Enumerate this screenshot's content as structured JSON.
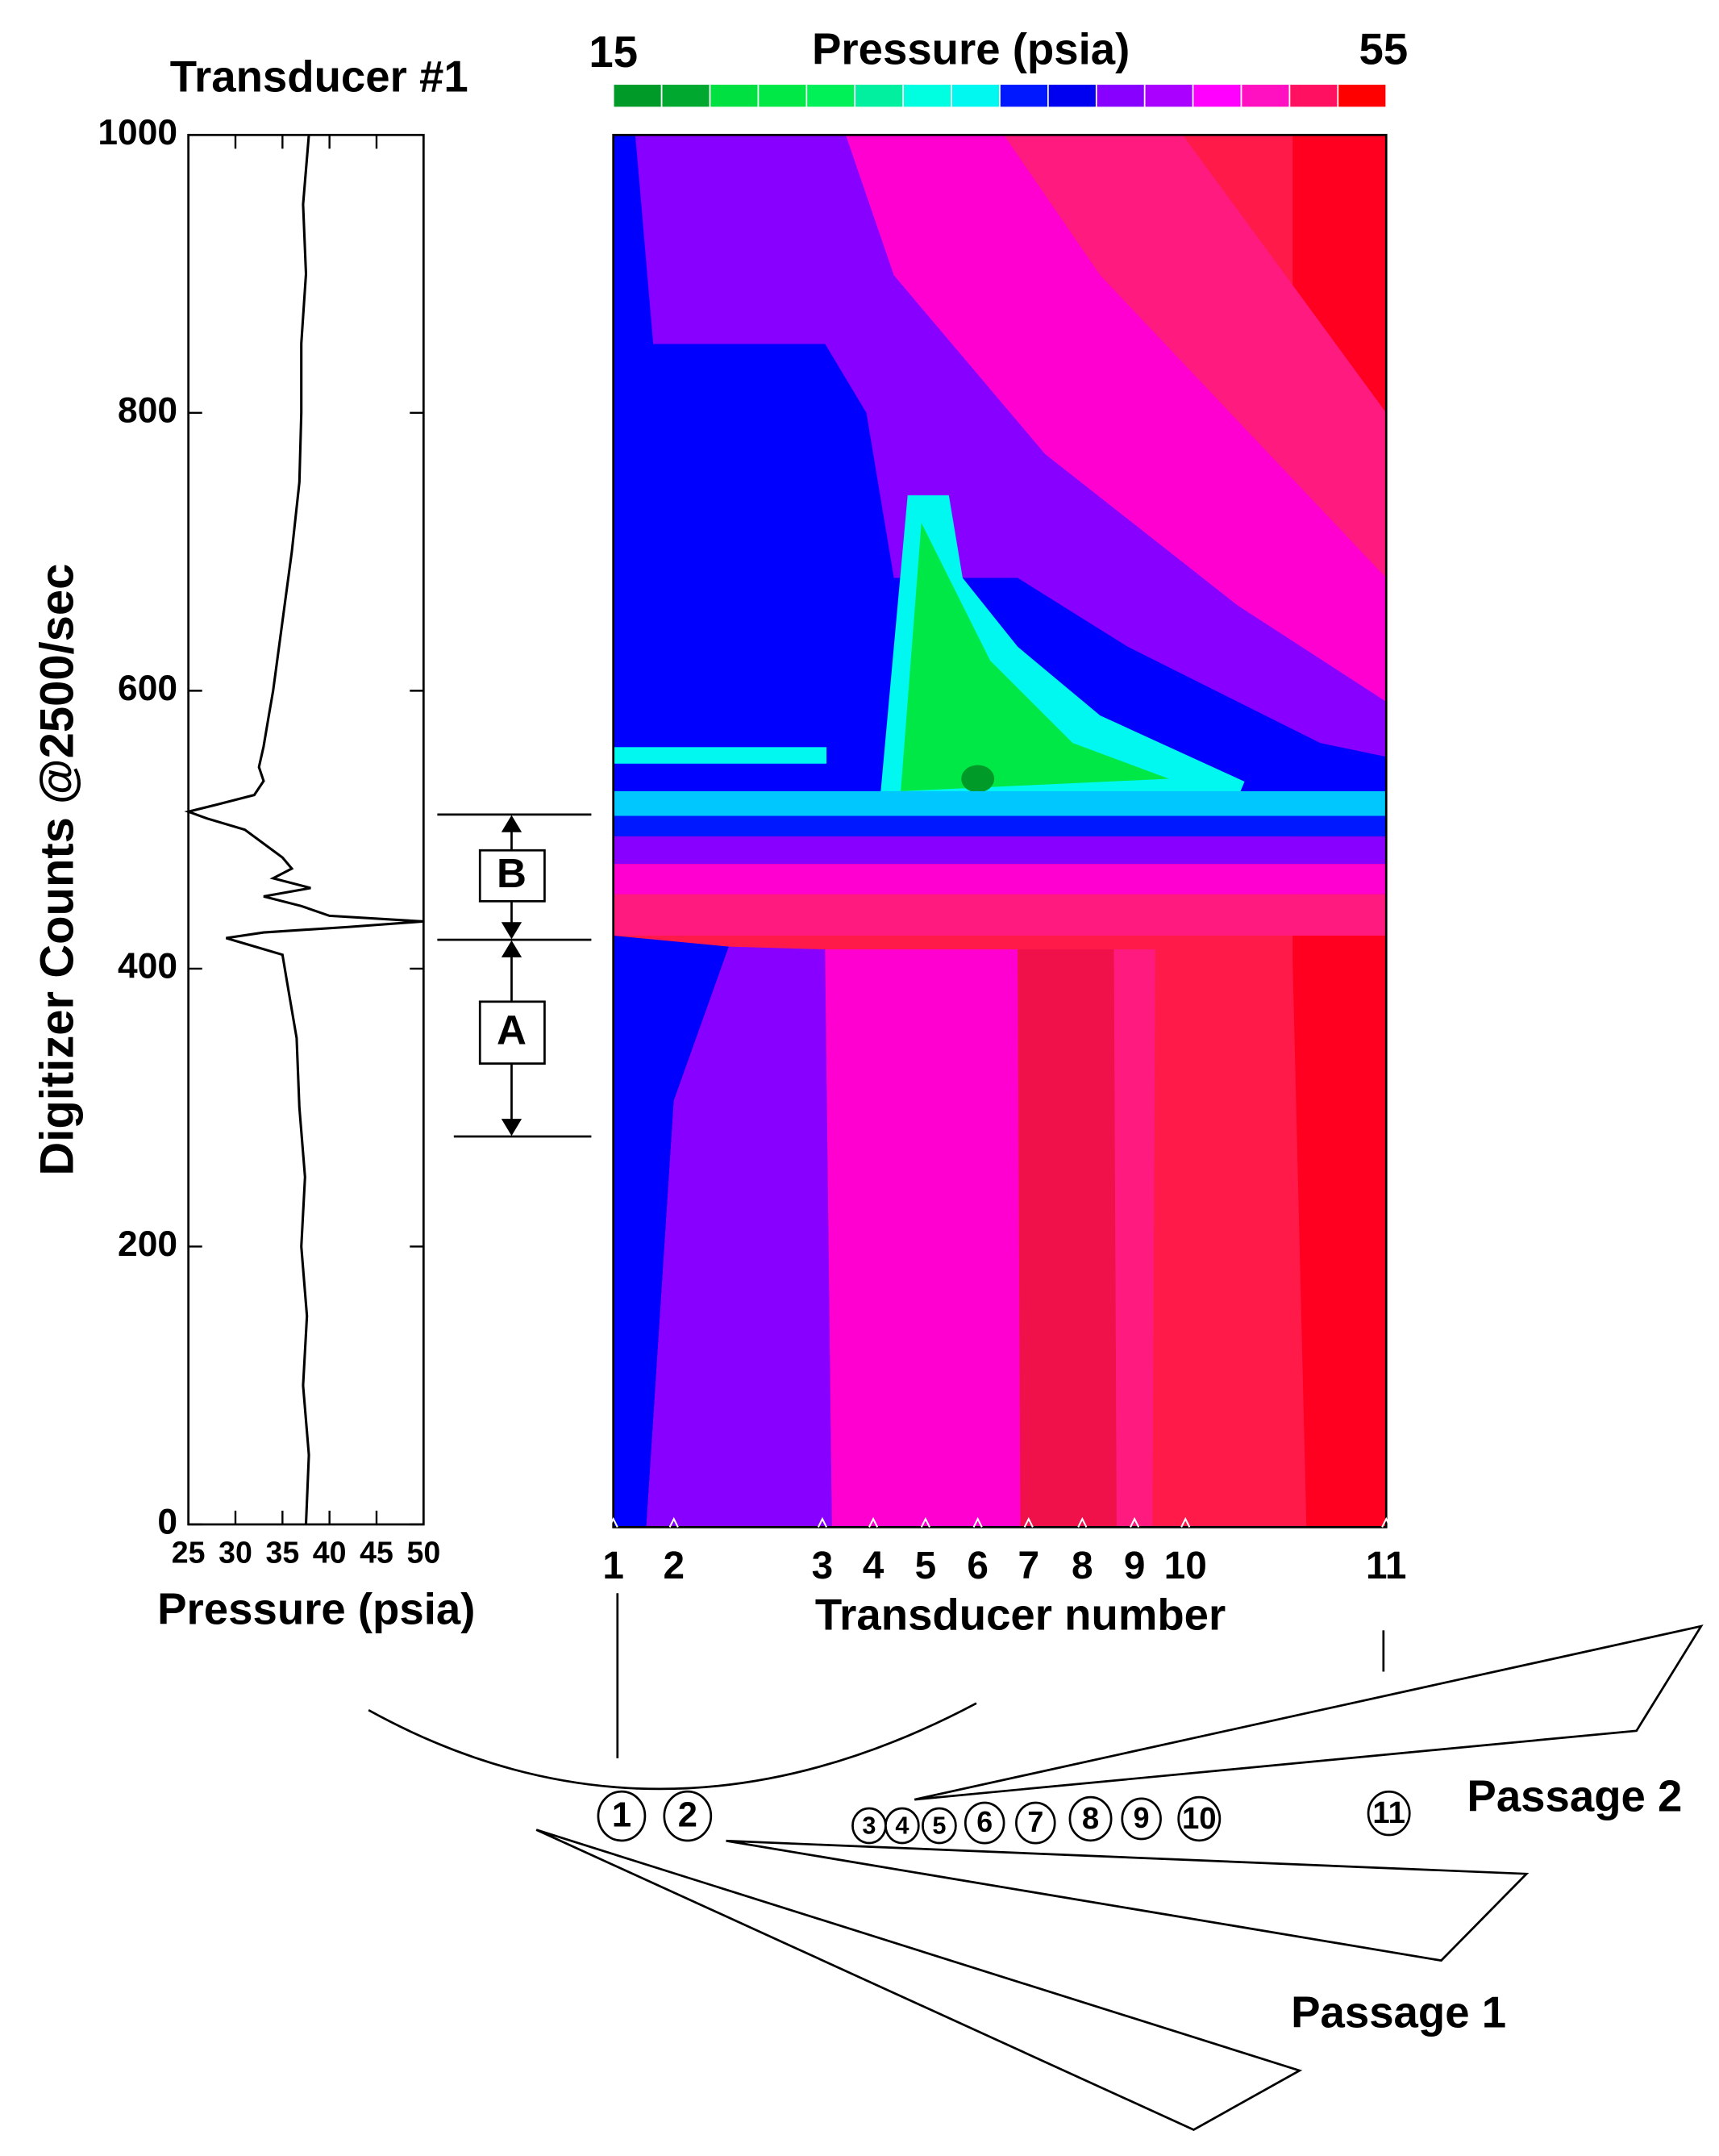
{
  "chart_data": [
    {
      "type": "line",
      "title": "Transducer #1",
      "x_label": "Pressure (psia)",
      "y_label": "Digitizer Counts @2500/sec",
      "xlim": [
        25,
        50
      ],
      "xticks": [
        25,
        30,
        35,
        40,
        45,
        50
      ],
      "ylim": [
        0,
        1000
      ],
      "yticks": [
        0,
        200,
        400,
        600,
        800,
        1000
      ],
      "color": "#000000",
      "x": [
        37.5,
        37.8,
        37.2,
        37.6,
        37.0,
        37.4,
        36.8,
        36.5,
        35.5,
        35,
        31,
        29,
        33,
        42,
        50,
        40,
        37,
        33,
        38,
        34,
        36,
        35,
        33,
        31,
        27,
        25,
        28,
        32,
        33,
        32.5,
        33,
        33.5,
        34,
        35,
        36,
        36.8,
        37,
        37,
        37.5,
        37.2,
        37.8
      ],
      "values": [
        0,
        50,
        100,
        150,
        200,
        250,
        300,
        350,
        390,
        410,
        418,
        422,
        426,
        430,
        434,
        438,
        445,
        452,
        458,
        465,
        472,
        480,
        490,
        500,
        508,
        513,
        518,
        525,
        535,
        545,
        560,
        580,
        600,
        650,
        700,
        750,
        800,
        850,
        900,
        950,
        1000
      ]
    },
    {
      "type": "contour",
      "x_label": "Transducer number",
      "categories": [
        "1",
        "2",
        "3",
        "4",
        "5",
        "6",
        "7",
        "8",
        "9",
        "10",
        "11"
      ],
      "colorbar": {
        "title": "Pressure (psia)",
        "min": 15,
        "max": 55,
        "colors": [
          "#009a28",
          "#00a830",
          "#00e040",
          "#00e846",
          "#00f058",
          "#00f0a0",
          "#00ffe0",
          "#00f8f0",
          "#0018ff",
          "#0000f0",
          "#8800ff",
          "#aa00ff",
          "#ff00ff",
          "#ff10c0",
          "#ff1060",
          "#ff0000"
        ]
      }
    }
  ],
  "annotations": [
    "B",
    "A"
  ],
  "diagram": {
    "passages": [
      "Passage 2",
      "Passage 1"
    ]
  }
}
